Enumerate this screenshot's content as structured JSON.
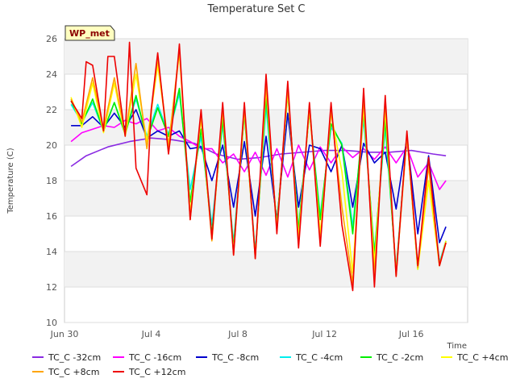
{
  "chart_data": {
    "type": "line",
    "title": "Temperature Set C",
    "xlabel": "Time",
    "ylabel": "Temperature (C)",
    "badge": "WP_met",
    "xlim": [
      0,
      18.6
    ],
    "ylim": [
      10,
      26
    ],
    "yticks": [
      10,
      12,
      14,
      16,
      18,
      20,
      22,
      24,
      26
    ],
    "xticks": [
      {
        "value": 0,
        "label": "Jun 30"
      },
      {
        "value": 4,
        "label": "Jul 4"
      },
      {
        "value": 8,
        "label": "Jul 8"
      },
      {
        "value": 12,
        "label": "Jul 12"
      },
      {
        "value": 16,
        "label": "Jul 16"
      }
    ],
    "series": [
      {
        "name": "TC_C -32cm",
        "color": "#8a2be2",
        "x": [
          0.3,
          1,
          2,
          3,
          4,
          5,
          6,
          7,
          8,
          9,
          10,
          11,
          12,
          13,
          14,
          15,
          16,
          17,
          17.6
        ],
        "y": [
          18.8,
          19.4,
          19.9,
          20.2,
          20.4,
          20.3,
          20.1,
          19.5,
          19.2,
          19.3,
          19.5,
          19.6,
          19.7,
          19.7,
          19.6,
          19.6,
          19.7,
          19.5,
          19.4
        ]
      },
      {
        "name": "TC_C -16cm",
        "color": "#ff00ff",
        "x": [
          0.3,
          0.8,
          1.3,
          1.8,
          2.3,
          2.8,
          3.3,
          3.8,
          4.3,
          4.8,
          5.3,
          5.8,
          6.3,
          6.8,
          7.3,
          7.8,
          8.3,
          8.8,
          9.3,
          9.8,
          10.3,
          10.8,
          11.3,
          11.8,
          12.3,
          12.8,
          13.3,
          13.8,
          14.3,
          14.8,
          15.3,
          15.8,
          16.3,
          16.8,
          17.3,
          17.6
        ],
        "y": [
          20.2,
          20.7,
          20.9,
          21.1,
          21.0,
          21.4,
          21.2,
          21.5,
          20.8,
          21.0,
          20.5,
          20.2,
          19.8,
          19.8,
          19.0,
          19.5,
          18.5,
          19.6,
          18.3,
          19.8,
          18.2,
          20.0,
          18.6,
          19.9,
          19.0,
          19.9,
          19.3,
          19.8,
          19.2,
          19.9,
          19.0,
          19.9,
          18.2,
          19.0,
          17.5,
          18.0
        ]
      },
      {
        "name": "TC_C -8cm",
        "color": "#0000cd",
        "x": [
          0.3,
          0.8,
          1.3,
          1.8,
          2.3,
          2.8,
          3.3,
          3.8,
          4.3,
          4.8,
          5.3,
          5.8,
          6.3,
          6.8,
          7.3,
          7.8,
          8.3,
          8.8,
          9.3,
          9.8,
          10.3,
          10.8,
          11.3,
          11.8,
          12.3,
          12.8,
          13.3,
          13.8,
          14.3,
          14.8,
          15.3,
          15.8,
          16.3,
          16.8,
          17.3,
          17.6
        ],
        "y": [
          21.1,
          21.1,
          21.6,
          21.0,
          21.8,
          21.0,
          22.0,
          20.4,
          20.8,
          20.5,
          20.8,
          19.8,
          19.9,
          18.0,
          20.0,
          16.5,
          20.2,
          16.0,
          20.5,
          15.8,
          21.8,
          16.5,
          20.0,
          19.8,
          18.5,
          20.0,
          16.5,
          20.1,
          19.0,
          19.6,
          16.4,
          20.4,
          15.0,
          19.4,
          14.5,
          15.4
        ]
      },
      {
        "name": "TC_C -4cm",
        "color": "#00eeee",
        "x": [
          0.3,
          0.8,
          1.3,
          1.8,
          2.3,
          2.8,
          3.3,
          3.8,
          4.3,
          4.8,
          5.3,
          5.8,
          6.3,
          6.8,
          7.3,
          7.8,
          8.3,
          8.8,
          9.3,
          9.8,
          10.3,
          10.8,
          11.3,
          11.8,
          12.3,
          12.8,
          13.3,
          13.8,
          14.3,
          14.8,
          15.3,
          15.8,
          16.3,
          16.8,
          17.3,
          17.6
        ],
        "y": [
          22.3,
          21.3,
          22.4,
          20.8,
          22.4,
          20.7,
          22.6,
          20.5,
          22.3,
          20.6,
          22.9,
          17.5,
          20.5,
          15.5,
          21.2,
          14.5,
          21.8,
          14.0,
          22.2,
          15.5,
          22.9,
          15.3,
          21.9,
          16.0,
          21.0,
          20.1,
          15.4,
          21.5,
          14.0,
          21.0,
          13.0,
          20.5,
          13.2,
          19.0,
          13.4,
          14.6
        ]
      },
      {
        "name": "TC_C -2cm",
        "color": "#00ee00",
        "x": [
          0.3,
          0.8,
          1.3,
          1.8,
          2.3,
          2.8,
          3.3,
          3.8,
          4.3,
          4.8,
          5.3,
          5.8,
          6.3,
          6.8,
          7.3,
          7.8,
          8.3,
          8.8,
          9.3,
          9.8,
          10.3,
          10.8,
          11.3,
          11.8,
          12.3,
          12.8,
          13.3,
          13.8,
          14.3,
          14.8,
          15.3,
          15.8,
          16.3,
          16.8,
          17.3,
          17.6
        ],
        "y": [
          22.5,
          21.2,
          22.6,
          20.8,
          22.4,
          20.6,
          22.8,
          20.3,
          22.1,
          20.5,
          23.2,
          16.8,
          20.9,
          15.0,
          21.5,
          14.2,
          21.8,
          13.8,
          22.7,
          15.5,
          23.0,
          15.2,
          21.9,
          15.8,
          21.2,
          20.0,
          15.0,
          21.9,
          13.8,
          21.4,
          12.8,
          20.6,
          13.0,
          19.0,
          13.2,
          14.6
        ]
      },
      {
        "name": "TC_C +4cm",
        "color": "#ffff00",
        "x": [
          0.3,
          0.8,
          1.3,
          1.8,
          2.3,
          2.8,
          3.3,
          3.8,
          4.3,
          4.8,
          5.3,
          5.8,
          6.3,
          6.8,
          7.3,
          7.8,
          8.3,
          8.8,
          9.3,
          9.8,
          10.3,
          10.8,
          11.3,
          11.8,
          12.3,
          12.8,
          13.3,
          13.8,
          14.3,
          14.8,
          15.3,
          15.8,
          16.3,
          16.8,
          17.3,
          17.6
        ],
        "y": [
          22.7,
          21.0,
          23.5,
          20.7,
          23.5,
          20.5,
          24.0,
          20.2,
          24.5,
          20.0,
          25.2,
          16.2,
          21.5,
          14.7,
          22.0,
          14.0,
          22.0,
          13.7,
          23.2,
          15.3,
          23.0,
          14.8,
          22.0,
          15.0,
          21.8,
          18.5,
          12.8,
          22.2,
          13.3,
          22.0,
          12.8,
          20.5,
          13.0,
          18.0,
          13.2,
          14.6
        ]
      },
      {
        "name": "TC_C +8cm",
        "color": "#ffa500",
        "x": [
          0.3,
          0.8,
          1.3,
          1.8,
          2.3,
          2.8,
          3.3,
          3.8,
          4.3,
          4.8,
          5.3,
          5.8,
          6.3,
          6.8,
          7.3,
          7.8,
          8.3,
          8.8,
          9.3,
          9.8,
          10.3,
          10.8,
          11.3,
          11.8,
          12.3,
          12.8,
          13.3,
          13.8,
          14.3,
          14.8,
          15.3,
          15.8,
          16.3,
          16.8,
          17.3,
          17.6
        ],
        "y": [
          22.6,
          21.3,
          23.8,
          20.9,
          23.8,
          20.6,
          24.6,
          19.8,
          24.9,
          19.9,
          25.4,
          15.8,
          21.7,
          14.6,
          22.1,
          13.8,
          22.2,
          13.6,
          23.4,
          15.2,
          23.3,
          14.5,
          22.3,
          14.5,
          22.0,
          16.5,
          12.2,
          22.6,
          12.6,
          22.5,
          12.6,
          20.5,
          13.1,
          18.8,
          13.3,
          14.5
        ]
      },
      {
        "name": "TC_C +12cm",
        "color": "#ee0000",
        "x": [
          0.3,
          0.8,
          1.0,
          1.3,
          1.8,
          2.0,
          2.3,
          2.8,
          3.0,
          3.3,
          3.8,
          4.0,
          4.3,
          4.8,
          5.0,
          5.3,
          5.8,
          6.3,
          6.8,
          7.3,
          7.8,
          8.3,
          8.8,
          9.3,
          9.8,
          10.3,
          10.8,
          11.3,
          11.8,
          12.3,
          12.8,
          13.3,
          13.8,
          14.3,
          14.8,
          15.3,
          15.8,
          16.3,
          16.8,
          17.3,
          17.6
        ],
        "y": [
          22.5,
          21.5,
          24.7,
          24.5,
          20.8,
          25.0,
          25.0,
          20.5,
          25.8,
          18.7,
          17.2,
          22.0,
          25.2,
          19.5,
          21.5,
          25.7,
          15.8,
          22.0,
          14.7,
          22.4,
          13.8,
          22.4,
          13.6,
          24.0,
          15.0,
          23.6,
          14.2,
          22.4,
          14.3,
          22.4,
          15.5,
          11.8,
          23.2,
          12.0,
          22.8,
          12.6,
          20.8,
          13.2,
          19.3,
          13.2,
          14.5
        ]
      }
    ],
    "legend": "bottom",
    "grid": true
  }
}
